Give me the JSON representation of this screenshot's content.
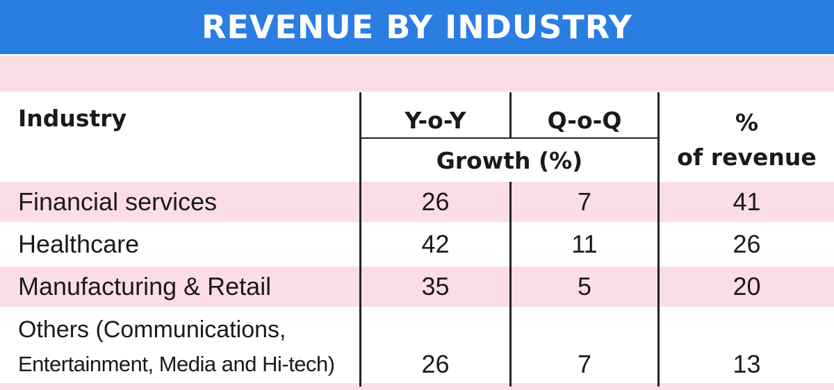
{
  "colors": {
    "title_background": "#2a7de1",
    "title_text": "#ffffff",
    "row_band": "#fbdde6",
    "rule": "#222222",
    "text": "#1a1a1a"
  },
  "chart_data": {
    "type": "table",
    "title": "REVENUE BY INDUSTRY",
    "header": {
      "industry": "Industry",
      "yoy": "Y-o-Y",
      "qoq": "Q-o-Q",
      "growth": "Growth (%)",
      "share_line1": "%",
      "share_line2": "of revenue"
    },
    "columns": [
      "Industry",
      "Y-o-Y",
      "Q-o-Q",
      "% of revenue"
    ],
    "rows": [
      {
        "industry": "Financial services",
        "yoy": "26",
        "qoq": "7",
        "share": "41"
      },
      {
        "industry": "Healthcare",
        "yoy": "42",
        "qoq": "11",
        "share": "26"
      },
      {
        "industry": "Manufacturing & Retail",
        "yoy": "35",
        "qoq": "5",
        "share": "20"
      },
      {
        "industry_line1": "Others (Communications,",
        "industry_line2": "Entertainment, Media and Hi-tech)",
        "yoy": "26",
        "qoq": "7",
        "share": "13"
      }
    ]
  }
}
